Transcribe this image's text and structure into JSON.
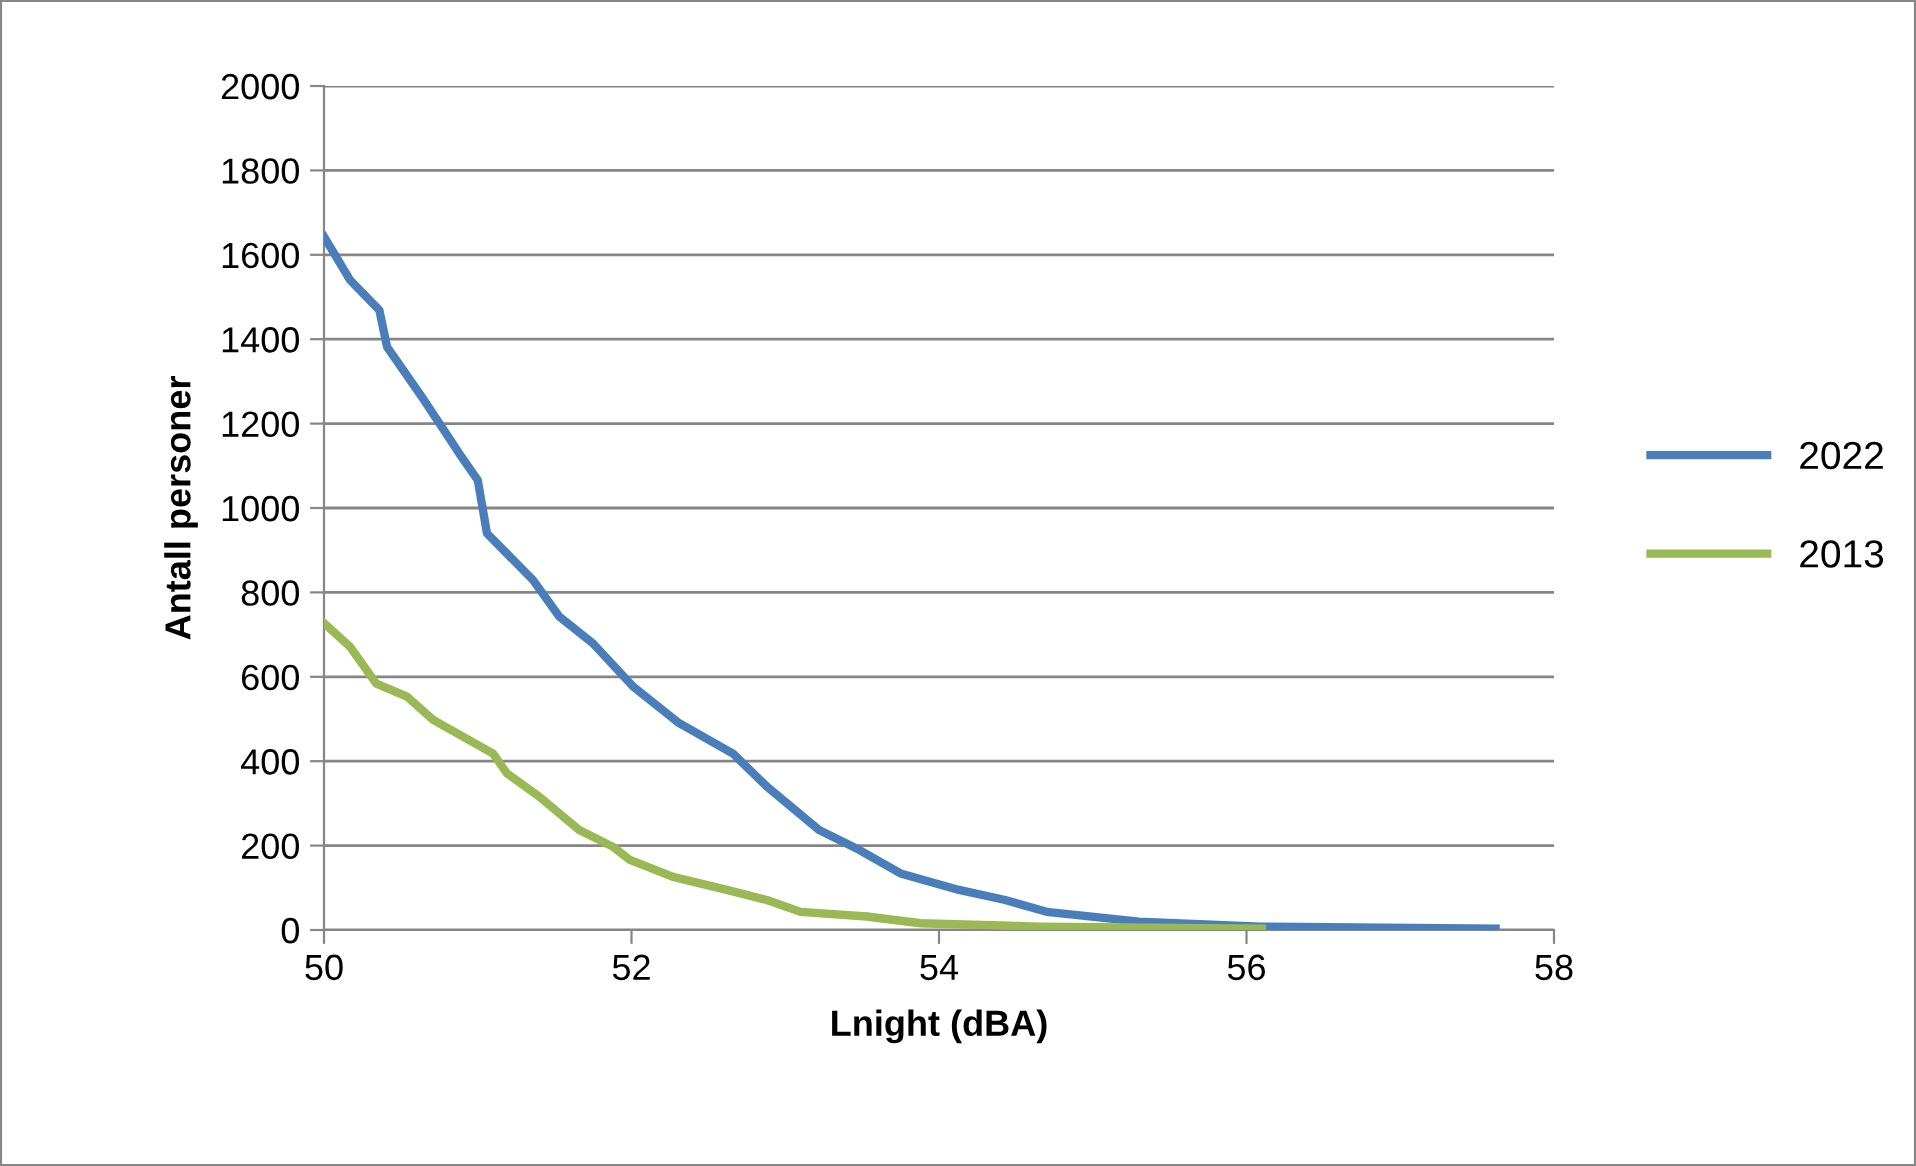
{
  "chart_data": {
    "type": "line",
    "xlabel": "Lnight (dBA)",
    "ylabel": "Antall personer",
    "xlim": [
      50,
      58
    ],
    "xticks": [
      50,
      52,
      54,
      56,
      58
    ],
    "ylim": [
      0,
      2000
    ],
    "yticks": [
      0,
      200,
      400,
      600,
      800,
      1000,
      1200,
      1400,
      1600,
      1800,
      2000
    ],
    "grid": "y",
    "legend": "right",
    "marker": "none",
    "line_style": "solid",
    "series": [
      {
        "name": "2022",
        "color": "#4a7ebb",
        "x": [
          50.0,
          50.17,
          50.36,
          50.41,
          50.65,
          50.88,
          51.0,
          51.06,
          51.36,
          51.53,
          51.75,
          52.01,
          52.31,
          52.66,
          52.88,
          53.22,
          53.48,
          53.75,
          54.13,
          54.43,
          54.7,
          55.3,
          56.09,
          57.62
        ],
        "values": [
          1643,
          1540,
          1469,
          1382,
          1256,
          1129,
          1066,
          940,
          829,
          743,
          679,
          577,
          490,
          418,
          340,
          237,
          190,
          134,
          95,
          71,
          43,
          20,
          8,
          3
        ]
      },
      {
        "name": "2013",
        "color": "#98b954",
        "x": [
          50.0,
          50.17,
          50.34,
          50.54,
          50.71,
          51.1,
          51.19,
          51.4,
          51.66,
          51.88,
          51.99,
          52.27,
          52.62,
          52.88,
          53.1,
          53.53,
          53.88,
          54.66,
          56.1
        ],
        "values": [
          727,
          671,
          584,
          553,
          498,
          418,
          371,
          316,
          237,
          197,
          166,
          126,
          95,
          71,
          43,
          32,
          16,
          8,
          3
        ]
      }
    ]
  }
}
